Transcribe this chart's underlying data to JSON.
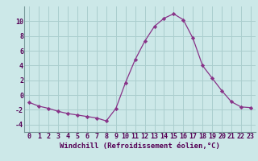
{
  "x": [
    0,
    1,
    2,
    3,
    4,
    5,
    6,
    7,
    8,
    9,
    10,
    11,
    12,
    13,
    14,
    15,
    16,
    17,
    18,
    19,
    20,
    21,
    22,
    23
  ],
  "y": [
    -1.0,
    -1.5,
    -1.8,
    -2.2,
    -2.5,
    -2.7,
    -2.9,
    -3.1,
    -3.5,
    -1.8,
    1.7,
    4.8,
    7.3,
    9.3,
    10.4,
    11.0,
    10.2,
    7.7,
    4.0,
    2.3,
    0.6,
    -0.9,
    -1.6,
    -1.7
  ],
  "line_color": "#883388",
  "marker": "D",
  "marker_size": 2.2,
  "bg_color": "#cce8e8",
  "grid_color": "#aacece",
  "xlabel": "Windchill (Refroidissement éolien,°C)",
  "xlabel_fontsize": 6.5,
  "tick_fontsize": 6.0,
  "ylim": [
    -5,
    12
  ],
  "xlim": [
    -0.5,
    23.5
  ],
  "yticks": [
    -4,
    -2,
    0,
    2,
    4,
    6,
    8,
    10
  ],
  "xticks": [
    0,
    1,
    2,
    3,
    4,
    5,
    6,
    7,
    8,
    9,
    10,
    11,
    12,
    13,
    14,
    15,
    16,
    17,
    18,
    19,
    20,
    21,
    22,
    23
  ]
}
